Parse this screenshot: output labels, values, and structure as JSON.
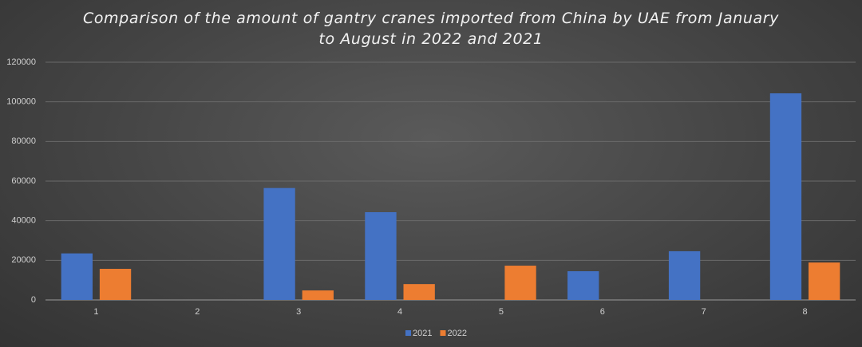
{
  "chart_data": {
    "type": "bar",
    "title": "Comparison of the amount of gantry cranes imported from China by UAE from January to August in 2022 and 2021",
    "categories": [
      "1",
      "2",
      "3",
      "4",
      "5",
      "6",
      "7",
      "8"
    ],
    "series": [
      {
        "name": "2021",
        "color": "#4472c4",
        "values": [
          23500,
          0,
          56500,
          44300,
          0,
          14500,
          24600,
          104300
        ]
      },
      {
        "name": "2022",
        "color": "#ed7d31",
        "values": [
          15700,
          0,
          4800,
          8000,
          17300,
          0,
          0,
          18900
        ]
      }
    ],
    "ylim": [
      0,
      120000
    ],
    "yticks": [
      0,
      20000,
      40000,
      60000,
      80000,
      100000,
      120000
    ],
    "grid": true,
    "legend": "bottom"
  }
}
